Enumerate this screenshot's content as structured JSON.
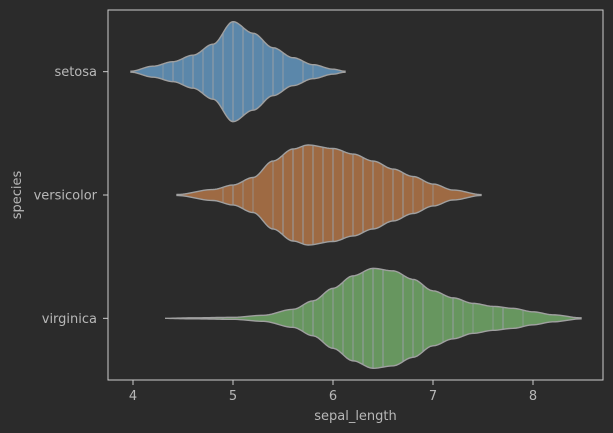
{
  "chart_data": {
    "type": "violin",
    "orientation": "horizontal",
    "xlabel": "sepal_length",
    "ylabel": "species",
    "xlim": [
      3.75,
      8.7
    ],
    "x_ticks": [
      4,
      5,
      6,
      7,
      8
    ],
    "x_tick_labels": [
      "4",
      "5",
      "6",
      "7",
      "8"
    ],
    "categories": [
      "setosa",
      "versicolor",
      "virginica"
    ],
    "grid": false,
    "inner": "stick",
    "colors": {
      "background": "#2b2b2b",
      "axes_edge": "#cccccc",
      "violin_edge": "#a0a0a0",
      "stick": "#9aa0a6"
    },
    "series": [
      {
        "category": "setosa",
        "color": "#5b87aa",
        "range": [
          3.98,
          6.12
        ],
        "density_profile": [
          [
            3.98,
            0.01
          ],
          [
            4.2,
            0.11
          ],
          [
            4.4,
            0.2
          ],
          [
            4.6,
            0.33
          ],
          [
            4.8,
            0.55
          ],
          [
            5.0,
            1.0
          ],
          [
            5.2,
            0.77
          ],
          [
            5.4,
            0.48
          ],
          [
            5.6,
            0.28
          ],
          [
            5.8,
            0.14
          ],
          [
            6.0,
            0.05
          ],
          [
            6.12,
            0.01
          ]
        ],
        "values": [
          5.1,
          4.9,
          4.7,
          4.6,
          5.0,
          5.4,
          4.6,
          5.0,
          4.4,
          4.9,
          5.4,
          4.8,
          4.8,
          4.3,
          5.8,
          5.7,
          5.4,
          5.1,
          5.7,
          5.1,
          5.4,
          5.1,
          4.6,
          5.1,
          4.8,
          5.0,
          5.0,
          5.2,
          5.2,
          4.7,
          4.8,
          5.4,
          5.2,
          5.5,
          4.9,
          5.0,
          5.5,
          4.9,
          4.4,
          5.1,
          5.0,
          4.5,
          4.4,
          5.0,
          5.1,
          4.8,
          5.1,
          4.6,
          5.3,
          5.0
        ]
      },
      {
        "category": "versicolor",
        "color": "#9e6a43",
        "range": [
          4.44,
          7.48
        ],
        "density_profile": [
          [
            4.44,
            0.01
          ],
          [
            4.8,
            0.11
          ],
          [
            5.0,
            0.2
          ],
          [
            5.2,
            0.35
          ],
          [
            5.4,
            0.68
          ],
          [
            5.6,
            0.92
          ],
          [
            5.75,
            1.0
          ],
          [
            6.0,
            0.93
          ],
          [
            6.2,
            0.82
          ],
          [
            6.4,
            0.68
          ],
          [
            6.6,
            0.52
          ],
          [
            6.8,
            0.37
          ],
          [
            7.0,
            0.22
          ],
          [
            7.2,
            0.1
          ],
          [
            7.48,
            0.01
          ]
        ],
        "values": [
          7.0,
          6.4,
          6.9,
          5.5,
          6.5,
          5.7,
          6.3,
          4.9,
          6.6,
          5.2,
          5.0,
          5.9,
          6.0,
          6.1,
          5.6,
          6.7,
          5.6,
          5.8,
          6.2,
          5.6,
          5.9,
          6.1,
          6.3,
          6.1,
          6.4,
          6.6,
          6.8,
          6.7,
          6.0,
          5.7,
          5.5,
          5.5,
          5.8,
          6.0,
          5.4,
          6.0,
          6.7,
          6.3,
          5.6,
          5.5,
          5.5,
          6.1,
          5.8,
          5.0,
          5.6,
          5.7,
          5.7,
          6.2,
          5.1,
          5.7
        ]
      },
      {
        "category": "virginica",
        "color": "#67965f",
        "range": [
          4.32,
          8.48
        ],
        "density_profile": [
          [
            4.32,
            0.0
          ],
          [
            4.6,
            0.01
          ],
          [
            5.0,
            0.02
          ],
          [
            5.3,
            0.06
          ],
          [
            5.6,
            0.18
          ],
          [
            5.8,
            0.35
          ],
          [
            6.0,
            0.6
          ],
          [
            6.2,
            0.85
          ],
          [
            6.4,
            1.0
          ],
          [
            6.6,
            0.95
          ],
          [
            6.8,
            0.78
          ],
          [
            7.0,
            0.55
          ],
          [
            7.2,
            0.41
          ],
          [
            7.4,
            0.3
          ],
          [
            7.6,
            0.24
          ],
          [
            7.8,
            0.2
          ],
          [
            8.0,
            0.13
          ],
          [
            8.2,
            0.07
          ],
          [
            8.48,
            0.01
          ]
        ],
        "values": [
          6.3,
          5.8,
          7.1,
          6.3,
          6.5,
          7.6,
          4.9,
          7.3,
          6.7,
          7.2,
          6.5,
          6.4,
          6.8,
          5.7,
          5.8,
          6.4,
          6.5,
          7.7,
          7.7,
          6.0,
          6.9,
          5.6,
          7.7,
          6.3,
          6.7,
          7.2,
          6.2,
          6.1,
          6.4,
          7.2,
          7.4,
          7.9,
          6.4,
          6.3,
          6.1,
          7.7,
          6.3,
          6.4,
          6.0,
          6.9,
          6.7,
          6.9,
          5.8,
          6.8,
          6.7,
          6.7,
          6.3,
          6.5,
          6.2,
          5.9
        ]
      }
    ]
  }
}
